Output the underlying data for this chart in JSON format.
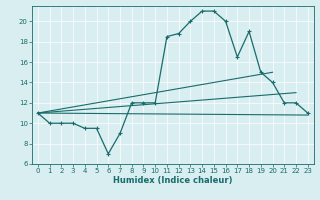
{
  "xlabel": "Humidex (Indice chaleur)",
  "ylabel": "",
  "bg_color": "#d8eef0",
  "line_color": "#1a6b6b",
  "xlim": [
    -0.5,
    23.5
  ],
  "ylim": [
    6,
    21.5
  ],
  "yticks": [
    6,
    8,
    10,
    12,
    14,
    16,
    18,
    20
  ],
  "xticks": [
    0,
    1,
    2,
    3,
    4,
    5,
    6,
    7,
    8,
    9,
    10,
    11,
    12,
    13,
    14,
    15,
    16,
    17,
    18,
    19,
    20,
    21,
    22,
    23
  ],
  "series": [
    {
      "x": [
        0,
        1,
        2,
        3,
        4,
        5,
        6,
        7,
        8,
        9,
        10,
        11,
        12,
        13,
        14,
        15,
        16,
        17,
        18,
        19,
        20,
        21,
        22,
        23
      ],
      "y": [
        11,
        10,
        10,
        10,
        9.5,
        9.5,
        7,
        9,
        12,
        12,
        12,
        18.5,
        18.8,
        20,
        21,
        21,
        20,
        16.5,
        19,
        15,
        14,
        12,
        12,
        11
      ]
    }
  ],
  "straight_lines": [
    {
      "x": [
        0,
        20
      ],
      "y": [
        11,
        15
      ]
    },
    {
      "x": [
        0,
        22
      ],
      "y": [
        11,
        13
      ]
    },
    {
      "x": [
        0,
        23
      ],
      "y": [
        11,
        10.8
      ]
    }
  ]
}
